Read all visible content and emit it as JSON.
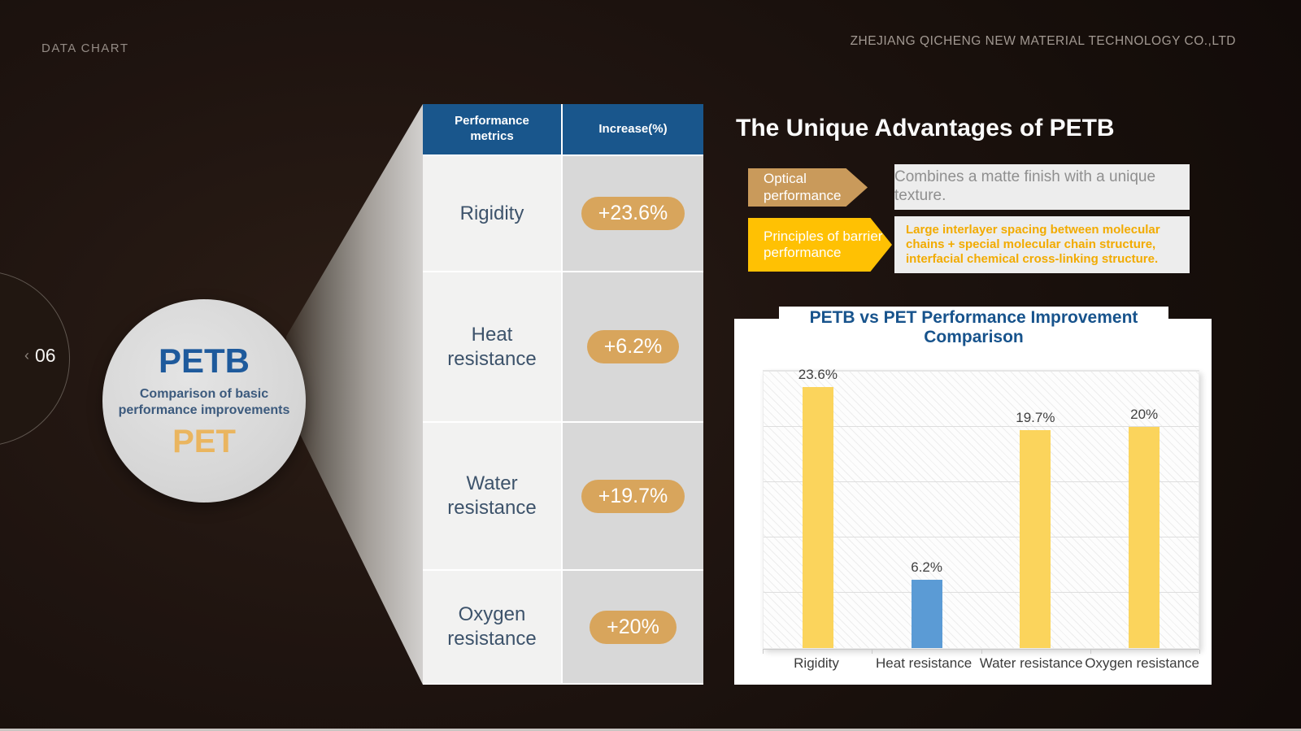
{
  "slide": {
    "label": "DATA CHART",
    "company": "ZHEJIANG QICHENG NEW MATERIAL TECHNOLOGY  CO.,LTD",
    "page": {
      "chevron": "‹",
      "number": "06"
    }
  },
  "intro_circle": {
    "title": "PETB",
    "subtitle": "Comparison of basic performance improvements",
    "footer": "PET",
    "title_color": "#1e5a9c",
    "subtitle_color": "#3c5a7d",
    "footer_color": "#eab55f"
  },
  "comparison_table": {
    "headers": [
      "Performance metrics",
      "Increase(%)"
    ],
    "header_bg": "#19568c",
    "pill_bg": "#d8a55c",
    "rows": [
      {
        "metric": "Rigidity",
        "increase": "+23.6%"
      },
      {
        "metric": "Heat resistance",
        "increase": "+6.2%"
      },
      {
        "metric": "Water resistance",
        "increase": "+19.7%"
      },
      {
        "metric": "Oxygen resistance",
        "increase": "+20%"
      }
    ]
  },
  "advantages": {
    "title": "The Unique Advantages of PETB",
    "items": [
      {
        "tag": "Optical performance",
        "tag_color": "#c99a5b",
        "text": "Combines a matte finish with a unique texture.",
        "text_color": "#8f8f8f",
        "text_bold": false
      },
      {
        "tag": "Principles of barrier performance",
        "tag_color": "#ffc103",
        "text": "Large interlayer spacing between molecular chains + special molecular chain structure, interfacial chemical cross-linking structure.",
        "text_color": "#f2ab00",
        "text_bold": true
      }
    ]
  },
  "chart_data": {
    "type": "bar",
    "title": "PETB vs PET Performance Improvement Comparison",
    "title_color": "#17538c",
    "categories": [
      "Rigidity",
      "Heat resistance",
      "Water resistance",
      "Oxygen resistance"
    ],
    "values": [
      23.6,
      6.2,
      19.7,
      20
    ],
    "data_labels": [
      "23.6%",
      "6.2%",
      "19.7%",
      "20%"
    ],
    "bar_colors": [
      "#fbd45c",
      "#5b9bd5",
      "#fbd45c",
      "#fbd45c"
    ],
    "ylim": [
      0,
      25
    ],
    "grid_step": 5,
    "grid": true,
    "legend": false,
    "xlabel": "",
    "ylabel": ""
  }
}
